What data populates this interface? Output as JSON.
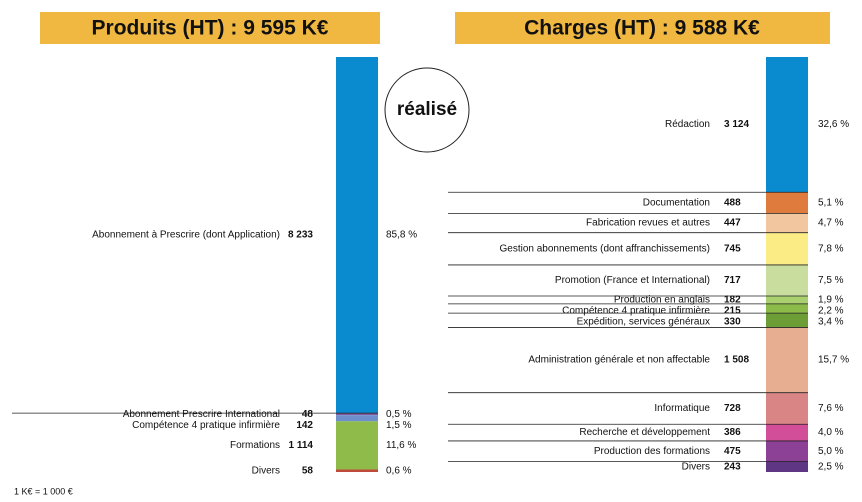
{
  "chart_data": [
    {
      "type": "stacked-column",
      "title": "Produits (HT) : 9 595 K€",
      "categories": [
        "Abonnement à Prescrire (dont Application)",
        "Abonnement Prescrire International",
        "Compétence 4 pratique infirmière",
        "Formations",
        "Divers"
      ],
      "values": [
        8233,
        48,
        142,
        1114,
        58
      ],
      "value_labels": [
        "8 233",
        "48",
        "142",
        "1 114",
        "58"
      ],
      "shares": [
        85.8,
        0.5,
        1.5,
        11.6,
        0.6
      ],
      "share_labels": [
        "85,8 %",
        "0,5 %",
        "1,5 %",
        "11,6 %",
        "0,6 %"
      ],
      "colors": [
        "#0a8bd0",
        "#7d5b9c",
        "#6f8fcc",
        "#8fbb4a",
        "#c04a3a"
      ]
    },
    {
      "type": "stacked-column",
      "title": "Charges (HT) : 9 588 K€",
      "categories": [
        "Rédaction",
        "Documentation",
        "Fabrication revues et autres",
        "Gestion abonnements (dont affranchissements)",
        "Promotion (France et International)",
        "Production en anglais",
        "Compétence 4 pratique infirmière",
        "Expédition, services généraux",
        "Administration générale et non affectable",
        "Informatique",
        "Recherche et développement",
        "Production des formations",
        "Divers"
      ],
      "values": [
        3124,
        488,
        447,
        745,
        717,
        182,
        215,
        330,
        1508,
        728,
        386,
        475,
        243
      ],
      "value_labels": [
        "3 124",
        "488",
        "447",
        "745",
        "717",
        "182",
        "215",
        "330",
        "1 508",
        "728",
        "386",
        "475",
        "243"
      ],
      "shares": [
        32.6,
        5.1,
        4.7,
        7.8,
        7.5,
        1.9,
        2.2,
        3.4,
        15.7,
        7.6,
        4.0,
        5.0,
        2.5
      ],
      "share_labels": [
        "32,6 %",
        "5,1 %",
        "4,7 %",
        "7,8 %",
        "7,5 %",
        "1,9 %",
        "2,2 %",
        "3,4 %",
        "15,7 %",
        "7,6 %",
        "4,0 %",
        "5,0 %",
        "2,5 %"
      ],
      "colors": [
        "#0a8bd0",
        "#e07b3e",
        "#f2c7a0",
        "#fbec85",
        "#c9dd9e",
        "#a9cf6e",
        "#8dbb4a",
        "#6d9e36",
        "#e8ae92",
        "#d98586",
        "#d34e99",
        "#8d4196",
        "#5e3683"
      ]
    }
  ],
  "badge": "réalisé",
  "note": "1 K€ = 1 000 €"
}
